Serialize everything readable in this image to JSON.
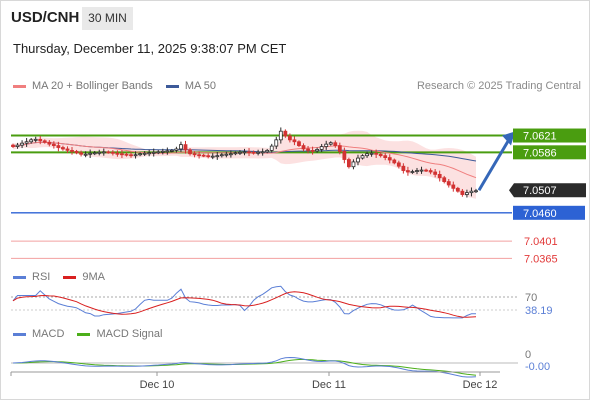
{
  "header": {
    "symbol": "USD/CNH",
    "timeframe": "30 MIN",
    "datetime": "Thursday, December 11, 2025 9:38:07 PM CET"
  },
  "legend": {
    "ma20_label": "MA 20 + Bollinger Bands",
    "ma50_label": "MA 50",
    "ma20_color": "#f07f7f",
    "ma50_color": "#3d5a99",
    "copyright": "Research © 2025 Trading Central"
  },
  "rsi_legend": {
    "rsi_label": "RSI",
    "ma_label": "9MA",
    "rsi_color": "#5b7fd6",
    "ma_color": "#d92020"
  },
  "macd_legend": {
    "macd_label": "MACD",
    "signal_label": "MACD Signal",
    "macd_color": "#5b7fd6",
    "signal_color": "#4caf1a"
  },
  "chart_data": {
    "type": "candlestick",
    "price_range": [
      7.0345,
      7.0695
    ],
    "levels": [
      {
        "value": 7.0621,
        "label": "7.0621",
        "style": "boxed",
        "color": "#4a9d10"
      },
      {
        "value": 7.0586,
        "label": "7.0586",
        "style": "boxed",
        "color": "#4a9d10"
      },
      {
        "value": 7.0507,
        "label": "7.0507",
        "style": "current",
        "color": "#2b2b2b"
      },
      {
        "value": 7.046,
        "label": "7.0460",
        "style": "boxed",
        "color": "#2d62d4"
      },
      {
        "value": 7.0401,
        "label": "7.0401",
        "style": "text",
        "color": "#e23a3a"
      },
      {
        "value": 7.0365,
        "label": "7.0365",
        "style": "text",
        "color": "#e23a3a"
      }
    ],
    "projection": {
      "from": 7.0507,
      "to": 7.0621
    },
    "x_ticks": [
      "Dec 10",
      "Dec 11",
      "Dec 12"
    ],
    "rsi": {
      "levels": [
        "70",
        "38.19"
      ]
    },
    "macd": {
      "levels": [
        "0",
        "-0.00"
      ]
    },
    "close": [
      7.0598,
      7.0601,
      7.0605,
      7.0608,
      7.0612,
      7.0613,
      7.061,
      7.0607,
      7.0603,
      7.06,
      7.0596,
      7.0593,
      7.059,
      7.0588,
      7.0585,
      7.0582,
      7.0582,
      7.0584,
      7.0585,
      7.0586,
      7.0587,
      7.0586,
      7.0584,
      7.0583,
      7.0582,
      7.0581,
      7.058,
      7.0581,
      7.0583,
      7.0584,
      7.0585,
      7.0586,
      7.0587,
      7.0588,
      7.0589,
      7.059,
      7.0593,
      7.0602,
      7.0591,
      7.0583,
      7.0581,
      7.058,
      7.0579,
      7.0578,
      7.0578,
      7.0579,
      7.0581,
      7.0582,
      7.0583,
      7.0585,
      7.0586,
      7.0587,
      7.0586,
      7.0585,
      7.0586,
      7.0587,
      7.059,
      7.0599,
      7.0612,
      7.063,
      7.062,
      7.0612,
      7.0608,
      7.06,
      7.0593,
      7.059,
      7.0589,
      7.0592,
      7.0598,
      7.0603,
      7.0606,
      7.06,
      7.0588,
      7.0571,
      7.0556,
      7.0566,
      7.0574,
      7.0579,
      7.0583,
      7.0584,
      7.0582,
      7.0579,
      7.0575,
      7.057,
      7.0564,
      7.0557,
      7.0548,
      7.0545,
      7.0546,
      7.0548,
      7.0549,
      7.0548,
      7.0545,
      7.054,
      7.0533,
      7.0525,
      7.0518,
      7.0511,
      7.0505,
      7.0498,
      7.0502,
      7.0505,
      7.0506
    ]
  }
}
